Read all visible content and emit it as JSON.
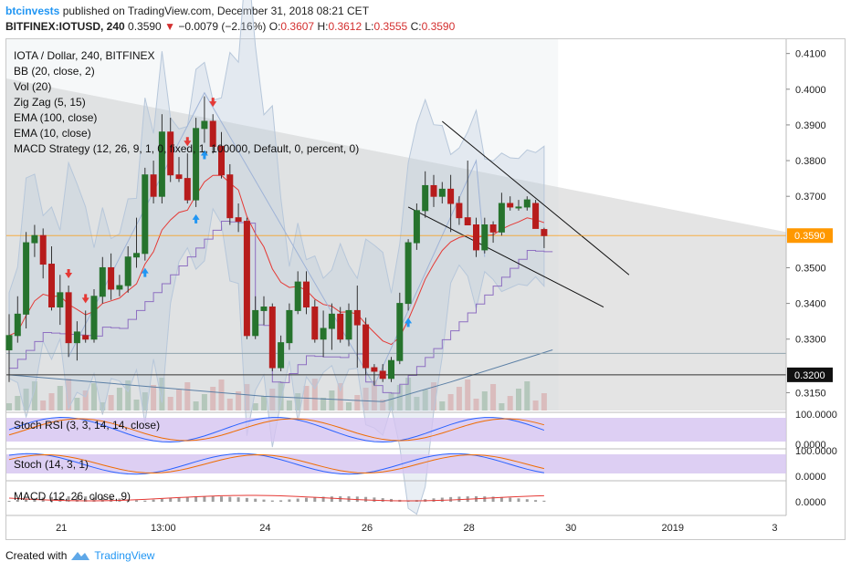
{
  "header": {
    "author": "btcinvests",
    "published": "published on TradingView.com, December 31, 2018 08:21 CET",
    "symbol": "BITFINEX:IOTUSD, 240",
    "last": "0.3590",
    "change": "−0.0079 (−2.16%)",
    "o_label": "O:",
    "o_val": "0.3607",
    "h_label": "H:",
    "h_val": "0.3612",
    "l_label": "L:",
    "l_val": "0.3555",
    "c_label": "C:",
    "c_val": "0.3590"
  },
  "legend": [
    "IOTA / Dollar, 240, BITFINEX",
    "BB (20, close, 2)",
    "Vol (20)",
    "Zig Zag (5, 15)",
    "EMA (100, close)",
    "EMA (10, close)",
    "MACD Strategy (12, 26, 9, 1, 0, fixed, 1, 100000, Default, 0, percent, 0)"
  ],
  "panes": {
    "stoch_rsi": "Stoch RSI (3, 3, 14, 14, close)",
    "stoch": "Stoch (14, 3, 1)",
    "macd": "MACD (12, 26, close, 9)"
  },
  "footer": {
    "created": "Created with",
    "brand": "TradingView"
  },
  "colors": {
    "up": "#26732d",
    "down": "#b71c1c",
    "last_price": "#ff9800",
    "ema10": "#e53935",
    "ema100": "#5b7fa5",
    "zigzag": "#9fb3d6",
    "bb": "#b7c7da"
  },
  "chart_data": {
    "type": "candlestick",
    "title": "IOTA / Dollar, 240, BITFINEX",
    "ylim": [
      0.31,
      0.414
    ],
    "yticks": [
      "0.4100",
      "0.4000",
      "0.3900",
      "0.3800",
      "0.3700",
      "0.3500",
      "0.3400",
      "0.3300",
      "0.3150"
    ],
    "last_price_label": "0.3590",
    "last_price": 0.359,
    "level_label": "0.3200",
    "level": 0.32,
    "xticks": [
      {
        "label": "21",
        "i": 4
      },
      {
        "label": "13:00",
        "i": 16
      },
      {
        "label": "24",
        "i": 28
      },
      {
        "label": "26",
        "i": 40
      },
      {
        "label": "28",
        "i": 52
      },
      {
        "label": "30",
        "i": 64
      },
      {
        "label": "2019",
        "i": 76
      },
      {
        "label": "3",
        "i": 88
      }
    ],
    "candles": [
      {
        "o": 0.327,
        "h": 0.337,
        "l": 0.318,
        "c": 0.331
      },
      {
        "o": 0.331,
        "h": 0.342,
        "l": 0.329,
        "c": 0.337
      },
      {
        "o": 0.337,
        "h": 0.36,
        "l": 0.333,
        "c": 0.357
      },
      {
        "o": 0.357,
        "h": 0.362,
        "l": 0.353,
        "c": 0.359
      },
      {
        "o": 0.359,
        "h": 0.361,
        "l": 0.347,
        "c": 0.351
      },
      {
        "o": 0.351,
        "h": 0.356,
        "l": 0.338,
        "c": 0.339
      },
      {
        "o": 0.339,
        "h": 0.348,
        "l": 0.334,
        "c": 0.343
      },
      {
        "o": 0.343,
        "h": 0.345,
        "l": 0.325,
        "c": 0.329
      },
      {
        "o": 0.329,
        "h": 0.335,
        "l": 0.324,
        "c": 0.332
      },
      {
        "o": 0.331,
        "h": 0.338,
        "l": 0.329,
        "c": 0.33
      },
      {
        "o": 0.33,
        "h": 0.344,
        "l": 0.329,
        "c": 0.342
      },
      {
        "o": 0.342,
        "h": 0.353,
        "l": 0.34,
        "c": 0.35
      },
      {
        "o": 0.35,
        "h": 0.354,
        "l": 0.341,
        "c": 0.344
      },
      {
        "o": 0.344,
        "h": 0.348,
        "l": 0.342,
        "c": 0.345
      },
      {
        "o": 0.345,
        "h": 0.356,
        "l": 0.343,
        "c": 0.353
      },
      {
        "o": 0.353,
        "h": 0.364,
        "l": 0.35,
        "c": 0.354
      },
      {
        "o": 0.354,
        "h": 0.378,
        "l": 0.352,
        "c": 0.376
      },
      {
        "o": 0.376,
        "h": 0.38,
        "l": 0.368,
        "c": 0.37
      },
      {
        "o": 0.37,
        "h": 0.393,
        "l": 0.368,
        "c": 0.388
      },
      {
        "o": 0.388,
        "h": 0.392,
        "l": 0.374,
        "c": 0.376
      },
      {
        "o": 0.376,
        "h": 0.381,
        "l": 0.374,
        "c": 0.375
      },
      {
        "o": 0.375,
        "h": 0.382,
        "l": 0.368,
        "c": 0.369
      },
      {
        "o": 0.369,
        "h": 0.392,
        "l": 0.367,
        "c": 0.389
      },
      {
        "o": 0.389,
        "h": 0.398,
        "l": 0.385,
        "c": 0.391
      },
      {
        "o": 0.391,
        "h": 0.393,
        "l": 0.382,
        "c": 0.384
      },
      {
        "o": 0.384,
        "h": 0.388,
        "l": 0.375,
        "c": 0.376
      },
      {
        "o": 0.376,
        "h": 0.379,
        "l": 0.362,
        "c": 0.364
      },
      {
        "o": 0.364,
        "h": 0.368,
        "l": 0.36,
        "c": 0.363
      },
      {
        "o": 0.363,
        "h": 0.364,
        "l": 0.33,
        "c": 0.331
      },
      {
        "o": 0.331,
        "h": 0.342,
        "l": 0.33,
        "c": 0.338
      },
      {
        "o": 0.338,
        "h": 0.342,
        "l": 0.334,
        "c": 0.339
      },
      {
        "o": 0.339,
        "h": 0.34,
        "l": 0.321,
        "c": 0.322
      },
      {
        "o": 0.322,
        "h": 0.331,
        "l": 0.321,
        "c": 0.329
      },
      {
        "o": 0.329,
        "h": 0.34,
        "l": 0.327,
        "c": 0.338
      },
      {
        "o": 0.338,
        "h": 0.349,
        "l": 0.337,
        "c": 0.346
      },
      {
        "o": 0.346,
        "h": 0.349,
        "l": 0.337,
        "c": 0.339
      },
      {
        "o": 0.339,
        "h": 0.341,
        "l": 0.329,
        "c": 0.33
      },
      {
        "o": 0.33,
        "h": 0.338,
        "l": 0.325,
        "c": 0.333
      },
      {
        "o": 0.333,
        "h": 0.34,
        "l": 0.327,
        "c": 0.337
      },
      {
        "o": 0.337,
        "h": 0.339,
        "l": 0.329,
        "c": 0.33
      },
      {
        "o": 0.33,
        "h": 0.34,
        "l": 0.328,
        "c": 0.338
      },
      {
        "o": 0.338,
        "h": 0.345,
        "l": 0.322,
        "c": 0.334
      },
      {
        "o": 0.334,
        "h": 0.336,
        "l": 0.32,
        "c": 0.322
      },
      {
        "o": 0.322,
        "h": 0.323,
        "l": 0.317,
        "c": 0.321
      },
      {
        "o": 0.321,
        "h": 0.323,
        "l": 0.318,
        "c": 0.319
      },
      {
        "o": 0.319,
        "h": 0.325,
        "l": 0.318,
        "c": 0.324
      },
      {
        "o": 0.324,
        "h": 0.343,
        "l": 0.323,
        "c": 0.34
      },
      {
        "o": 0.34,
        "h": 0.358,
        "l": 0.338,
        "c": 0.357
      },
      {
        "o": 0.357,
        "h": 0.368,
        "l": 0.355,
        "c": 0.366
      },
      {
        "o": 0.366,
        "h": 0.377,
        "l": 0.364,
        "c": 0.373
      },
      {
        "o": 0.373,
        "h": 0.376,
        "l": 0.367,
        "c": 0.37
      },
      {
        "o": 0.37,
        "h": 0.374,
        "l": 0.368,
        "c": 0.372
      },
      {
        "o": 0.372,
        "h": 0.376,
        "l": 0.36,
        "c": 0.368
      },
      {
        "o": 0.368,
        "h": 0.37,
        "l": 0.362,
        "c": 0.364
      },
      {
        "o": 0.364,
        "h": 0.38,
        "l": 0.362,
        "c": 0.362
      },
      {
        "o": 0.362,
        "h": 0.364,
        "l": 0.353,
        "c": 0.355
      },
      {
        "o": 0.355,
        "h": 0.364,
        "l": 0.354,
        "c": 0.362
      },
      {
        "o": 0.362,
        "h": 0.363,
        "l": 0.357,
        "c": 0.36
      },
      {
        "o": 0.36,
        "h": 0.371,
        "l": 0.359,
        "c": 0.368
      },
      {
        "o": 0.368,
        "h": 0.37,
        "l": 0.366,
        "c": 0.367
      },
      {
        "o": 0.367,
        "h": 0.369,
        "l": 0.366,
        "c": 0.367
      },
      {
        "o": 0.367,
        "h": 0.37,
        "l": 0.366,
        "c": 0.369
      },
      {
        "o": 0.368,
        "h": 0.369,
        "l": 0.361,
        "c": 0.361
      },
      {
        "o": 0.3607,
        "h": 0.3612,
        "l": 0.3555,
        "c": 0.359
      }
    ],
    "buy_signals": [
      16,
      22,
      23,
      47
    ],
    "sell_signals": [
      7,
      9,
      21,
      24
    ],
    "stoch_rsi_range": [
      "100.0000",
      "0.0000"
    ],
    "stoch_range": [
      "100.0000",
      "0.0000"
    ],
    "macd_tick": "0.0000"
  }
}
